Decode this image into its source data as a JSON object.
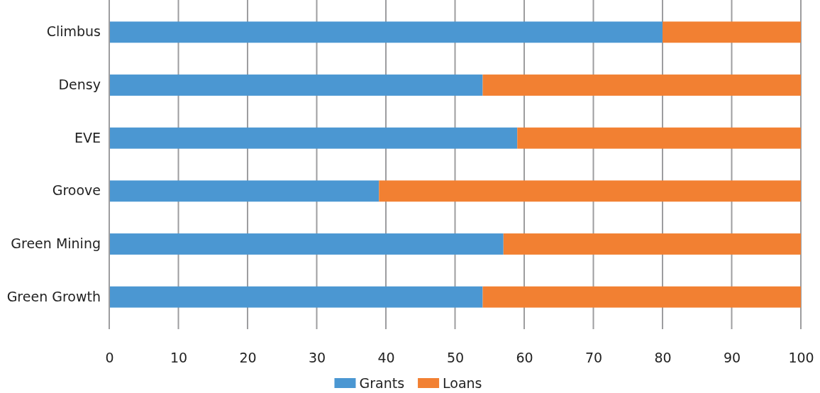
{
  "chart_data": {
    "type": "bar",
    "orientation": "horizontal",
    "stacked": true,
    "categories": [
      "Climbus",
      "Densy",
      "EVE",
      "Groove",
      "Green Mining",
      "Green Growth"
    ],
    "series": [
      {
        "name": "Grants",
        "color": "#4b97d2",
        "values": [
          80,
          54,
          59,
          39,
          57,
          54
        ]
      },
      {
        "name": "Loans",
        "color": "#f28032",
        "values": [
          20,
          46,
          41,
          61,
          43,
          46
        ]
      }
    ],
    "xlim": [
      0,
      100
    ],
    "xticks": [
      0,
      10,
      20,
      30,
      40,
      50,
      60,
      70,
      80,
      90,
      100
    ],
    "grid": "x",
    "legend": "bottom"
  }
}
